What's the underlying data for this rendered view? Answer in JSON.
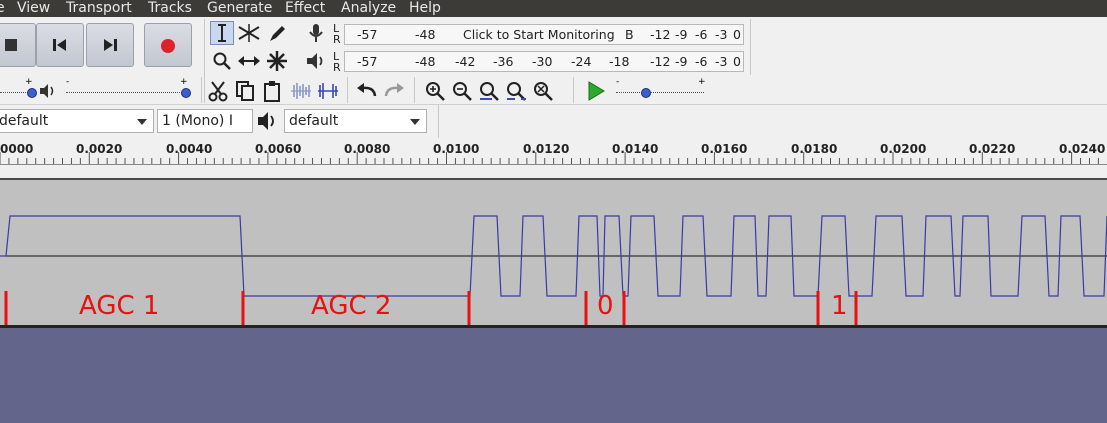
{
  "menu": {
    "items": [
      "View",
      "Transport",
      "Tracks",
      "Generate",
      "Effect",
      "Analyze",
      "Help"
    ]
  },
  "meters": {
    "record_scale": [
      "-57",
      "-48"
    ],
    "monitor_hint": "Click to Start Monitoring",
    "record_scale_right": [
      "-12",
      "-9",
      "-6",
      "-3",
      "0"
    ],
    "playback_scale": [
      "-57",
      "-48",
      "-42",
      "-36",
      "-30",
      "-24",
      "-18",
      "-12",
      "-9",
      "-6",
      "-3",
      "0"
    ],
    "channel_left": "L",
    "channel_right": "R",
    "hint_tail": "B"
  },
  "sliders": {
    "minus": "-",
    "plus": "+"
  },
  "devices": {
    "host": "default",
    "channels": "1 (Mono) I",
    "output": "default"
  },
  "ruler": {
    "ticks": [
      "0000",
      "0.0020",
      "0.0040",
      "0.0060",
      "0.0080",
      "0.0100",
      "0.0120",
      "0.0140",
      "0.0160",
      "0.0180",
      "0.0200",
      "0.0220",
      "0.0240"
    ]
  },
  "annotations": [
    "AGC 1",
    "AGC 2",
    "0",
    "1"
  ],
  "colors": {
    "menubar": "#3c3b37",
    "toolbar": "#f0f0f0",
    "track_bg": "#c0c0c0",
    "waveform": "#3a3aa8",
    "label_red": "#e81010",
    "background": "#63668a"
  },
  "icons": [
    "stop-icon",
    "skip-to-start-icon",
    "skip-to-end-icon",
    "record-icon",
    "selection-tool-icon",
    "envelope-tool-icon",
    "draw-tool-icon",
    "microphone-icon",
    "zoom-tool-icon",
    "timeshift-tool-icon",
    "multi-tool-icon",
    "speaker-icon",
    "cut-icon",
    "copy-icon",
    "paste-icon",
    "trim-icon",
    "silence-icon",
    "undo-icon",
    "redo-icon",
    "zoom-in-icon",
    "zoom-out-icon",
    "fit-selection-icon",
    "fit-project-icon",
    "zoom-toggle-icon",
    "play-at-speed-icon"
  ]
}
